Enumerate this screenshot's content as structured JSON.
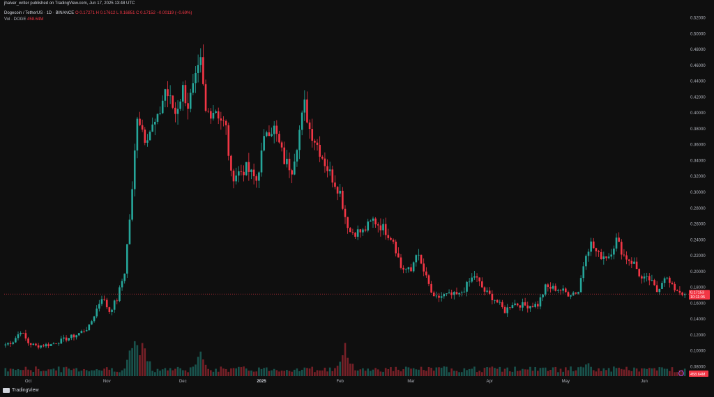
{
  "header": {
    "publish_line": "jhalver_writer published on TradingView.com, Jun 17, 2025 13:48 UTC",
    "pair_label": "Dogecoin / TetherUS · 1D · BINANCE",
    "ohlc": "O 0.17271 H 0.17612 L 0.16851 C 0.17152 −0.00119 (−0.69%)",
    "vol_label": "Vol · DOGE",
    "vol_value": "458.64M"
  },
  "brand": {
    "name": "TradingView"
  },
  "colors": {
    "up": "#26a69a",
    "down": "#f23645",
    "background": "#0f0f0f",
    "axis_text": "#b2b5be"
  },
  "chart_data": {
    "type": "candlestick",
    "symbol": "DOGE/USDT",
    "interval": "1D",
    "y_axis_ticks": [
      "0.52000",
      "0.50000",
      "0.48000",
      "0.46000",
      "0.44000",
      "0.42000",
      "0.40000",
      "0.38000",
      "0.36000",
      "0.34000",
      "0.32000",
      "0.30000",
      "0.28000",
      "0.26000",
      "0.24000",
      "0.22000",
      "0.20000",
      "0.18000",
      "0.16000",
      "0.14000",
      "0.12000",
      "0.10000",
      "0.08000"
    ],
    "y_tick_values": [
      0.52,
      0.5,
      0.48,
      0.46,
      0.44,
      0.42,
      0.4,
      0.38,
      0.36,
      0.34,
      0.32,
      0.3,
      0.28,
      0.26,
      0.24,
      0.22,
      0.2,
      0.18,
      0.16,
      0.14,
      0.12,
      0.1,
      0.08
    ],
    "ylim": [
      0.068,
      0.532
    ],
    "x_axis_labels": [
      {
        "label": "Oct",
        "date": "2024-10-01",
        "bold": false
      },
      {
        "label": "Nov",
        "date": "2024-11-01",
        "bold": false
      },
      {
        "label": "Dec",
        "date": "2024-12-01",
        "bold": false
      },
      {
        "label": "2025",
        "date": "2025-01-01",
        "bold": true
      },
      {
        "label": "Feb",
        "date": "2025-02-01",
        "bold": false
      },
      {
        "label": "Mar",
        "date": "2025-03-01",
        "bold": false
      },
      {
        "label": "Apr",
        "date": "2025-04-01",
        "bold": false
      },
      {
        "label": "May",
        "date": "2025-05-01",
        "bold": false
      },
      {
        "label": "Jun",
        "date": "2025-06-01",
        "bold": false
      }
    ],
    "x_start_date": "2024-09-22",
    "x_end_date": "2025-06-17",
    "price_badge": {
      "price": "0.17153",
      "countdown": "10:11:05"
    },
    "volume_badge": "458.64M",
    "closes": [
      {
        "date": "2024-09-22",
        "close": 0.108
      },
      {
        "date": "2024-09-25",
        "close": 0.112
      },
      {
        "date": "2024-09-28",
        "close": 0.125
      },
      {
        "date": "2024-10-01",
        "close": 0.11
      },
      {
        "date": "2024-10-04",
        "close": 0.106
      },
      {
        "date": "2024-10-10",
        "close": 0.108
      },
      {
        "date": "2024-10-20",
        "close": 0.12
      },
      {
        "date": "2024-10-25",
        "close": 0.13
      },
      {
        "date": "2024-10-30",
        "close": 0.168
      },
      {
        "date": "2024-11-02",
        "close": 0.15
      },
      {
        "date": "2024-11-05",
        "close": 0.165
      },
      {
        "date": "2024-11-08",
        "close": 0.2
      },
      {
        "date": "2024-11-11",
        "close": 0.3
      },
      {
        "date": "2024-11-13",
        "close": 0.4
      },
      {
        "date": "2024-11-16",
        "close": 0.37
      },
      {
        "date": "2024-11-21",
        "close": 0.39
      },
      {
        "date": "2024-11-24",
        "close": 0.43
      },
      {
        "date": "2024-11-28",
        "close": 0.4
      },
      {
        "date": "2024-12-01",
        "close": 0.43
      },
      {
        "date": "2024-12-03",
        "close": 0.41
      },
      {
        "date": "2024-12-06",
        "close": 0.44
      },
      {
        "date": "2024-12-08",
        "close": 0.462
      },
      {
        "date": "2024-12-10",
        "close": 0.4
      },
      {
        "date": "2024-12-14",
        "close": 0.405
      },
      {
        "date": "2024-12-18",
        "close": 0.38
      },
      {
        "date": "2024-12-20",
        "close": 0.32
      },
      {
        "date": "2024-12-26",
        "close": 0.33
      },
      {
        "date": "2024-12-30",
        "close": 0.315
      },
      {
        "date": "2025-01-03",
        "close": 0.38
      },
      {
        "date": "2025-01-06",
        "close": 0.38
      },
      {
        "date": "2025-01-10",
        "close": 0.34
      },
      {
        "date": "2025-01-13",
        "close": 0.33
      },
      {
        "date": "2025-01-18",
        "close": 0.41
      },
      {
        "date": "2025-01-20",
        "close": 0.38
      },
      {
        "date": "2025-01-23",
        "close": 0.36
      },
      {
        "date": "2025-01-27",
        "close": 0.33
      },
      {
        "date": "2025-02-01",
        "close": 0.3
      },
      {
        "date": "2025-02-03",
        "close": 0.27
      },
      {
        "date": "2025-02-05",
        "close": 0.25
      },
      {
        "date": "2025-02-10",
        "close": 0.25
      },
      {
        "date": "2025-02-14",
        "close": 0.265
      },
      {
        "date": "2025-02-18",
        "close": 0.255
      },
      {
        "date": "2025-02-22",
        "close": 0.24
      },
      {
        "date": "2025-02-25",
        "close": 0.205
      },
      {
        "date": "2025-03-01",
        "close": 0.2
      },
      {
        "date": "2025-03-03",
        "close": 0.225
      },
      {
        "date": "2025-03-06",
        "close": 0.2
      },
      {
        "date": "2025-03-10",
        "close": 0.165
      },
      {
        "date": "2025-03-14",
        "close": 0.17
      },
      {
        "date": "2025-03-20",
        "close": 0.17
      },
      {
        "date": "2025-03-26",
        "close": 0.195
      },
      {
        "date": "2025-03-30",
        "close": 0.175
      },
      {
        "date": "2025-04-03",
        "close": 0.165
      },
      {
        "date": "2025-04-07",
        "close": 0.15
      },
      {
        "date": "2025-04-10",
        "close": 0.16
      },
      {
        "date": "2025-04-15",
        "close": 0.157
      },
      {
        "date": "2025-04-20",
        "close": 0.158
      },
      {
        "date": "2025-04-23",
        "close": 0.18
      },
      {
        "date": "2025-04-28",
        "close": 0.178
      },
      {
        "date": "2025-05-02",
        "close": 0.172
      },
      {
        "date": "2025-05-06",
        "close": 0.175
      },
      {
        "date": "2025-05-09",
        "close": 0.225
      },
      {
        "date": "2025-05-11",
        "close": 0.235
      },
      {
        "date": "2025-05-14",
        "close": 0.22
      },
      {
        "date": "2025-05-18",
        "close": 0.22
      },
      {
        "date": "2025-05-21",
        "close": 0.24
      },
      {
        "date": "2025-05-24",
        "close": 0.22
      },
      {
        "date": "2025-05-28",
        "close": 0.21
      },
      {
        "date": "2025-05-31",
        "close": 0.19
      },
      {
        "date": "2025-06-03",
        "close": 0.19
      },
      {
        "date": "2025-06-06",
        "close": 0.175
      },
      {
        "date": "2025-06-09",
        "close": 0.195
      },
      {
        "date": "2025-06-12",
        "close": 0.18
      },
      {
        "date": "2025-06-17",
        "close": 0.1715
      }
    ],
    "volume_level_peaks": [
      {
        "date": "2024-11-12",
        "vol_fraction": 0.95
      },
      {
        "date": "2024-11-15",
        "vol_fraction": 0.8
      },
      {
        "date": "2024-12-08",
        "vol_fraction": 0.55
      },
      {
        "date": "2025-02-03",
        "vol_fraction": 0.7
      },
      {
        "date": "2025-05-10",
        "vol_fraction": 0.3
      }
    ]
  }
}
